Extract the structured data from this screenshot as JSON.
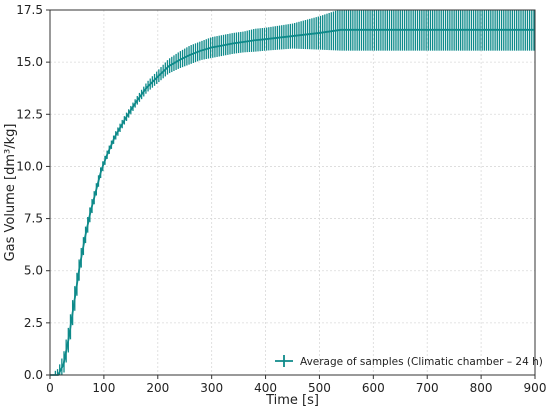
{
  "chart_data": {
    "type": "line",
    "xlabel": "Time [s]",
    "ylabel": "Gas Volume [dm³/kg]",
    "xlim": [
      0,
      900
    ],
    "ylim": [
      0,
      17.5
    ],
    "x_ticks": [
      "0",
      "100",
      "200",
      "300",
      "400",
      "500",
      "600",
      "700",
      "800",
      "900"
    ],
    "y_ticks": [
      "0.0",
      "2.5",
      "5.0",
      "7.5",
      "10.0",
      "12.5",
      "15.0",
      "17.5"
    ],
    "grid": true,
    "legend_position": "lower-right",
    "series": [
      {
        "name": "Average of samples (Climatic chamber – 24 h)",
        "color": "#0e8a8a",
        "error_bars": true,
        "x": [
          0,
          15,
          25,
          35,
          45,
          55,
          65,
          75,
          85,
          95,
          105,
          120,
          140,
          160,
          180,
          200,
          220,
          240,
          260,
          280,
          300,
          320,
          340,
          360,
          380,
          400,
          450,
          500,
          540,
          600,
          700,
          800,
          900
        ],
        "y": [
          0.0,
          0.0,
          0.5,
          1.8,
          3.5,
          5.2,
          6.6,
          7.8,
          8.8,
          9.8,
          10.5,
          11.4,
          12.3,
          13.1,
          13.8,
          14.3,
          14.8,
          15.1,
          15.35,
          15.55,
          15.7,
          15.8,
          15.9,
          15.97,
          16.05,
          16.1,
          16.25,
          16.4,
          16.55,
          16.55,
          16.55,
          16.55,
          16.55
        ],
        "error": [
          0.0,
          0.3,
          0.5,
          0.6,
          0.6,
          0.5,
          0.4,
          0.35,
          0.3,
          0.25,
          0.2,
          0.2,
          0.2,
          0.2,
          0.25,
          0.3,
          0.35,
          0.4,
          0.45,
          0.45,
          0.5,
          0.5,
          0.5,
          0.5,
          0.55,
          0.55,
          0.6,
          0.8,
          1.0,
          1.0,
          1.0,
          1.0,
          1.0
        ]
      }
    ]
  }
}
